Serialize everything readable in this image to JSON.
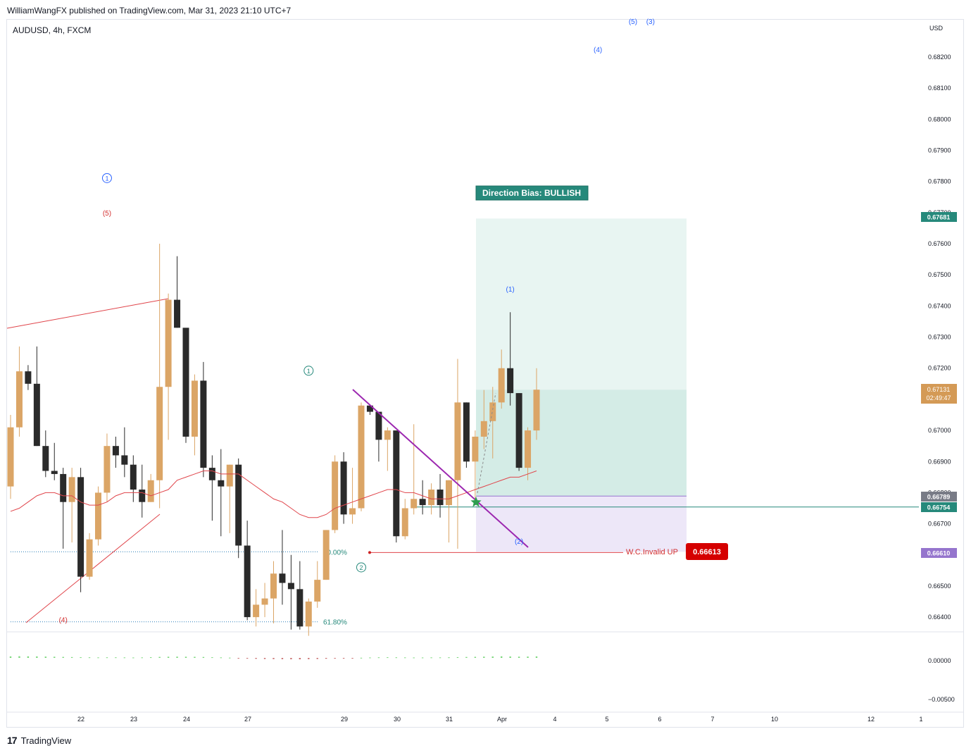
{
  "header": {
    "published_by": "WilliamWangFX published on TradingView.com, Mar 31, 2023 21:10 UTC+7",
    "symbol": "AUDUSD, 4h, FXCM"
  },
  "footer": {
    "brand": "TradingView",
    "logo": "17"
  },
  "colors": {
    "bull": "#dba566",
    "bear": "#2a2a2a",
    "ma": "#e0454b",
    "target_zone": "#d4ece6",
    "target_zone_light": "#e8f5f2",
    "stop_zone": "#ede7f8",
    "trend_purple": "#9c27b0",
    "teal": "#26897b"
  },
  "chart_data": {
    "type": "candlestick",
    "currency": "USD",
    "ylim": [
      0.66355,
      0.6832
    ],
    "y_ticks": [
      "0.68200",
      "0.68100",
      "0.68000",
      "0.67900",
      "0.67800",
      "0.67700",
      "0.67600",
      "0.67500",
      "0.67400",
      "0.67300",
      "0.67200",
      "0.67000",
      "0.66900",
      "0.66800",
      "0.66700",
      "0.66500",
      "0.66400"
    ],
    "x_ticks": [
      "22",
      "23",
      "24",
      "27",
      "29",
      "30",
      "31",
      "Apr",
      "4",
      "5",
      "6",
      "7",
      "10",
      "12",
      "1"
    ],
    "candles": [
      [
        0.6682,
        0.6705,
        0.6678,
        0.6701
      ],
      [
        0.6701,
        0.6727,
        0.6698,
        0.6719
      ],
      [
        0.6719,
        0.6721,
        0.6713,
        0.6715
      ],
      [
        0.6715,
        0.6727,
        0.6695,
        0.6695
      ],
      [
        0.6695,
        0.67,
        0.6685,
        0.6687
      ],
      [
        0.6687,
        0.6696,
        0.6684,
        0.6686
      ],
      [
        0.6686,
        0.6688,
        0.6662,
        0.6677
      ],
      [
        0.6677,
        0.6688,
        0.6664,
        0.6685
      ],
      [
        0.6685,
        0.6688,
        0.6648,
        0.6653
      ],
      [
        0.6653,
        0.6667,
        0.6652,
        0.6665
      ],
      [
        0.6665,
        0.6682,
        0.6663,
        0.668
      ],
      [
        0.668,
        0.6699,
        0.6677,
        0.6695
      ],
      [
        0.6695,
        0.6698,
        0.6688,
        0.6692
      ],
      [
        0.6692,
        0.6701,
        0.6685,
        0.6689
      ],
      [
        0.6689,
        0.6692,
        0.6677,
        0.6681
      ],
      [
        0.6681,
        0.6689,
        0.6672,
        0.6677
      ],
      [
        0.6677,
        0.6686,
        0.6677,
        0.6684
      ],
      [
        0.6684,
        0.676,
        0.6675,
        0.6714
      ],
      [
        0.6714,
        0.6744,
        0.6697,
        0.6742
      ],
      [
        0.6742,
        0.6756,
        0.6733,
        0.6733
      ],
      [
        0.6733,
        0.6732,
        0.6696,
        0.6698
      ],
      [
        0.6698,
        0.6718,
        0.6692,
        0.6716
      ],
      [
        0.6716,
        0.6722,
        0.6685,
        0.6688
      ],
      [
        0.6688,
        0.6692,
        0.6671,
        0.6684
      ],
      [
        0.6684,
        0.6694,
        0.6666,
        0.6682
      ],
      [
        0.6682,
        0.6689,
        0.6667,
        0.6689
      ],
      [
        0.6689,
        0.6691,
        0.6659,
        0.6663
      ],
      [
        0.6663,
        0.6671,
        0.6639,
        0.664
      ],
      [
        0.664,
        0.6649,
        0.6637,
        0.6644
      ],
      [
        0.6644,
        0.6651,
        0.664,
        0.6646
      ],
      [
        0.6646,
        0.6658,
        0.6638,
        0.6654
      ],
      [
        0.6654,
        0.6668,
        0.6644,
        0.6651
      ],
      [
        0.6651,
        0.666,
        0.6636,
        0.6649
      ],
      [
        0.6649,
        0.6658,
        0.6636,
        0.6637
      ],
      [
        0.6637,
        0.6646,
        0.6634,
        0.6645
      ],
      [
        0.6645,
        0.6658,
        0.6643,
        0.6652
      ],
      [
        0.6652,
        0.6668,
        0.6652,
        0.6668
      ],
      [
        0.6668,
        0.6692,
        0.6667,
        0.669
      ],
      [
        0.669,
        0.6693,
        0.667,
        0.6673
      ],
      [
        0.6673,
        0.6688,
        0.667,
        0.6675
      ],
      [
        0.6675,
        0.6709,
        0.6674,
        0.6708
      ],
      [
        0.6708,
        0.6708,
        0.6705,
        0.6706
      ],
      [
        0.6706,
        0.6705,
        0.669,
        0.6697
      ],
      [
        0.6697,
        0.6701,
        0.6687,
        0.67
      ],
      [
        0.67,
        0.6699,
        0.6664,
        0.6666
      ],
      [
        0.6666,
        0.6678,
        0.6665,
        0.6675
      ],
      [
        0.6675,
        0.6702,
        0.6673,
        0.6678
      ],
      [
        0.6678,
        0.6684,
        0.6673,
        0.6676
      ],
      [
        0.6676,
        0.6683,
        0.6673,
        0.6681
      ],
      [
        0.6681,
        0.6686,
        0.6672,
        0.6676
      ],
      [
        0.6676,
        0.6684,
        0.6664,
        0.6684
      ],
      [
        0.6684,
        0.6723,
        0.6662,
        0.6709
      ],
      [
        0.6709,
        0.6709,
        0.6688,
        0.669
      ],
      [
        0.669,
        0.67,
        0.6678,
        0.6698
      ],
      [
        0.6698,
        0.6713,
        0.6694,
        0.6703
      ],
      [
        0.6703,
        0.6714,
        0.6691,
        0.6709
      ],
      [
        0.6709,
        0.6726,
        0.6707,
        0.672
      ],
      [
        0.672,
        0.6738,
        0.6708,
        0.6712
      ],
      [
        0.6712,
        0.6712,
        0.6687,
        0.6688
      ],
      [
        0.6688,
        0.6701,
        0.6684,
        0.67
      ],
      [
        0.67,
        0.672,
        0.6697,
        0.67131
      ]
    ],
    "moving_average": [
      0.6674,
      0.6675,
      0.6677,
      0.6679,
      0.668,
      0.668,
      0.6679,
      0.6679,
      0.6677,
      0.6676,
      0.6676,
      0.6677,
      0.6679,
      0.668,
      0.668,
      0.668,
      0.6679,
      0.668,
      0.6681,
      0.6684,
      0.6685,
      0.6686,
      0.6687,
      0.6687,
      0.6686,
      0.6686,
      0.6686,
      0.6684,
      0.6682,
      0.668,
      0.6678,
      0.6677,
      0.6675,
      0.6673,
      0.6672,
      0.6672,
      0.6673,
      0.6675,
      0.6676,
      0.6677,
      0.6678,
      0.6679,
      0.668,
      0.6681,
      0.6681,
      0.668,
      0.668,
      0.6679,
      0.6678,
      0.6678,
      0.6678,
      0.6679,
      0.668,
      0.6681,
      0.6682,
      0.6683,
      0.6684,
      0.6685,
      0.6685,
      0.6686,
      0.6687
    ],
    "oscillator": [
      0.00018,
      0.0002,
      0.00019,
      0.00018,
      0.00016,
      0.00014,
      0.00012,
      0.0001,
      8e-05,
      7e-05,
      6e-05,
      7e-05,
      7e-05,
      6e-05,
      5e-05,
      6e-05,
      8e-05,
      0.00012,
      0.00014,
      0.00015,
      0.00014,
      0.00013,
      0.00011,
      8e-05,
      6e-05,
      3e-05,
      -2e-05,
      -8e-05,
      -0.00011,
      -0.00013,
      -0.00014,
      -0.00015,
      -0.00016,
      -0.00017,
      -0.00015,
      -0.00013,
      -0.0001,
      -7e-05,
      -4e-05,
      -2e-05,
      2e-05,
      5e-05,
      7e-05,
      8e-05,
      7e-05,
      6e-05,
      5e-05,
      5e-05,
      6e-05,
      6e-05,
      7e-05,
      9e-05,
      0.00011,
      0.00013,
      0.00015,
      0.00017,
      0.00019,
      0.00017,
      0.00015,
      0.00016,
      0.00018
    ],
    "osc_ticks": [
      "0.00000",
      "−0.00500"
    ],
    "price_labels": {
      "target": "0.67681",
      "current": "0.67131",
      "countdown": "02:49:47",
      "stop_zone_top": "0.66789",
      "entry": "0.66754",
      "invalid": "0.66610"
    },
    "fib_levels": [
      {
        "label": "50.00%",
        "price": 0.6661
      },
      {
        "label": "61.80%",
        "price": 0.66385
      }
    ],
    "annotations": {
      "direction_bias": "Direction Bias: BULLISH",
      "invalid_text": "W.C.Invalid UP",
      "invalid_price": "0.66613",
      "waves": [
        {
          "label": "1",
          "style": "circle-blue",
          "bar": 11,
          "price": 0.67811
        },
        {
          "label": "(5)",
          "style": "red",
          "bar": 11,
          "price": 0.677
        },
        {
          "label": "(4)",
          "style": "red",
          "bar": 6,
          "price": 0.66392
        },
        {
          "label": "1",
          "style": "circle-teal",
          "bar": 34,
          "price": 0.67192
        },
        {
          "label": "2",
          "style": "circle-teal",
          "bar": 40,
          "price": 0.6656
        },
        {
          "label": "(1)",
          "style": "blue",
          "bar": 57,
          "price": 0.67455
        },
        {
          "label": "(2)",
          "style": "blue",
          "bar": 58,
          "price": 0.66645
        },
        {
          "label": "(4)",
          "style": "blue",
          "bar": 67,
          "price": 0.68225
        },
        {
          "label": "(5)",
          "style": "blue",
          "bar": 71,
          "price": 0.68315
        },
        {
          "label": "(3)",
          "style": "blue",
          "bar": 73,
          "price": 0.68315
        }
      ]
    }
  }
}
